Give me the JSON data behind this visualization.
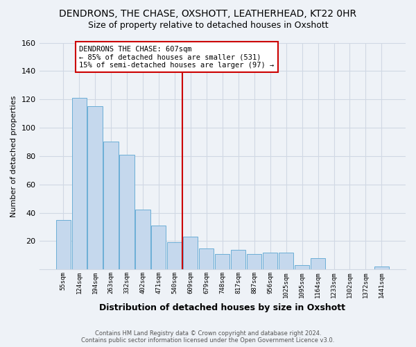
{
  "title": "DENDRONS, THE CHASE, OXSHOTT, LEATHERHEAD, KT22 0HR",
  "subtitle": "Size of property relative to detached houses in Oxshott",
  "xlabel": "Distribution of detached houses by size in Oxshott",
  "ylabel": "Number of detached properties",
  "bin_labels": [
    "55sqm",
    "124sqm",
    "194sqm",
    "263sqm",
    "332sqm",
    "402sqm",
    "471sqm",
    "540sqm",
    "609sqm",
    "679sqm",
    "748sqm",
    "817sqm",
    "887sqm",
    "956sqm",
    "1025sqm",
    "1095sqm",
    "1164sqm",
    "1233sqm",
    "1302sqm",
    "1372sqm",
    "1441sqm"
  ],
  "bar_heights": [
    35,
    121,
    115,
    90,
    81,
    42,
    31,
    19,
    23,
    15,
    11,
    14,
    11,
    12,
    12,
    3,
    8,
    0,
    0,
    0,
    2
  ],
  "bar_color": "#c5d8ed",
  "bar_edge_color": "#6baed6",
  "marker_bin_index": 8,
  "marker_line_color": "#cc0000",
  "annotation_line1": "DENDRONS THE CHASE: 607sqm",
  "annotation_line2": "← 85% of detached houses are smaller (531)",
  "annotation_line3": "15% of semi-detached houses are larger (97) →",
  "annotation_box_color": "#ffffff",
  "annotation_box_edge_color": "#cc0000",
  "ylim": [
    0,
    160
  ],
  "yticks": [
    0,
    20,
    40,
    60,
    80,
    100,
    120,
    140,
    160
  ],
  "footer_line1": "Contains HM Land Registry data © Crown copyright and database right 2024.",
  "footer_line2": "Contains public sector information licensed under the Open Government Licence v3.0.",
  "background_color": "#eef2f7",
  "grid_color": "#d0d8e4",
  "title_fontsize": 10,
  "subtitle_fontsize": 9
}
